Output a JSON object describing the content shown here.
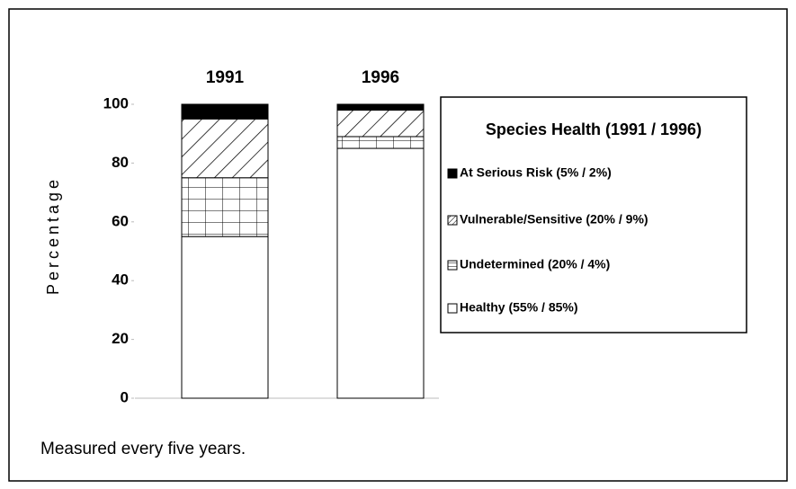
{
  "chart_data": {
    "type": "stacked-bar",
    "y_label": "Percentage",
    "caption": "Measured every five years.",
    "legend_title": "Species Health (1991 / 1996)",
    "legend": "right",
    "categories": [
      "1991",
      "1996"
    ],
    "series": [
      {
        "name": "Healthy (55% / 85%)",
        "color": "#ffffff",
        "pattern": "solid",
        "values": [
          55,
          85
        ]
      },
      {
        "name": "Undetermined (20% / 4%)",
        "color": "#ffffff",
        "pattern": "grid",
        "values": [
          20,
          4
        ]
      },
      {
        "name": "Vulnerable/Sensitive (20% / 9%)",
        "color": "#ffffff",
        "pattern": "hatch",
        "values": [
          20,
          9
        ]
      },
      {
        "name": "At Serious Risk (5% / 2%)",
        "color": "#000000",
        "pattern": "solid",
        "values": [
          5,
          2
        ]
      }
    ],
    "ylim": [
      0,
      100
    ],
    "yticks": [
      0,
      20,
      40,
      60,
      80,
      100
    ]
  }
}
